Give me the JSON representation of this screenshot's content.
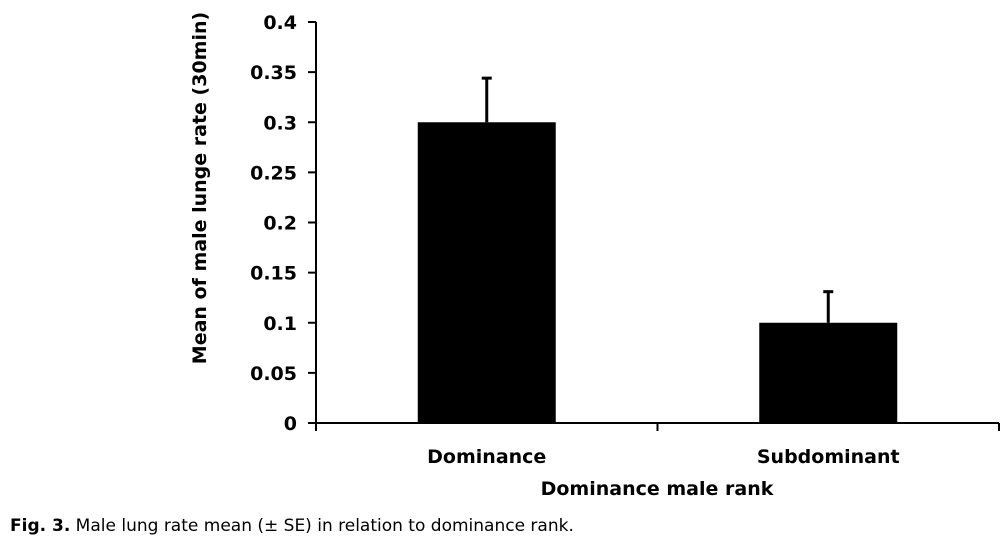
{
  "chart_data": {
    "type": "bar",
    "categories": [
      "Dominance",
      "Subdominant"
    ],
    "series": [
      {
        "values": [
          0.3,
          0.1
        ],
        "error": [
          0.044,
          0.031
        ]
      }
    ],
    "xlabel": "Dominance male rank",
    "ylabel": "Mean of male lunge rate (30min)",
    "ylim": [
      0,
      0.4
    ],
    "yticks": [
      0,
      0.05,
      0.1,
      0.15,
      0.2,
      0.25,
      0.3,
      0.35,
      0.4
    ],
    "ytick_labels": [
      "0",
      "0.05",
      "0.1",
      "0.15",
      "0.2",
      "0.25",
      "0.3",
      "0.35",
      "0.4"
    ],
    "bar_color": "#000000",
    "grid": false,
    "legend": "none"
  },
  "caption": {
    "prefix": "Fig. 3.",
    "text": " Male lung rate mean (± SE) in relation to dominance rank."
  }
}
